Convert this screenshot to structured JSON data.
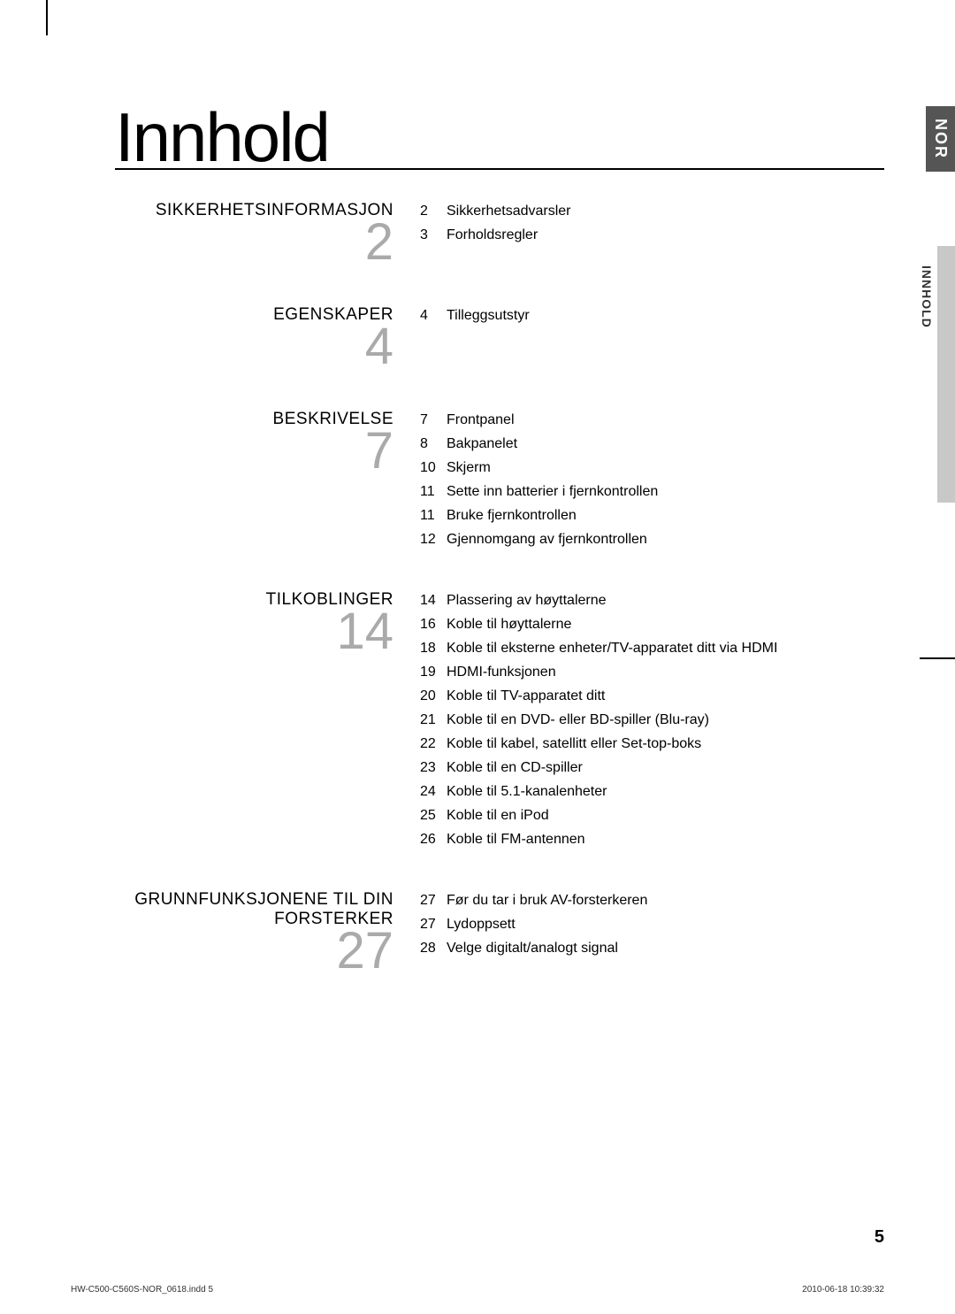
{
  "title": "Innhold",
  "lang_tab": "NOR",
  "section_tab": "INNHOLD",
  "page_number": "5",
  "footer_left": "HW-C500-C560S-NOR_0618.indd   5",
  "footer_right": "2010-06-18      10:39:32",
  "sections": [
    {
      "title": "SIKKERHETSINFORMASJON",
      "number": "2",
      "entries": [
        {
          "page": "2",
          "text": "Sikkerhetsadvarsler"
        },
        {
          "page": "3",
          "text": "Forholdsregler"
        }
      ]
    },
    {
      "title": "EGENSKAPER",
      "number": "4",
      "entries": [
        {
          "page": "4",
          "text": "Tilleggsutstyr"
        }
      ]
    },
    {
      "title": "BESKRIVELSE",
      "number": "7",
      "entries": [
        {
          "page": "7",
          "text": "Frontpanel"
        },
        {
          "page": "8",
          "text": "Bakpanelet"
        },
        {
          "page": "10",
          "text": "Skjerm"
        },
        {
          "page": "11",
          "text": "Sette inn batterier i fjernkontrollen"
        },
        {
          "page": "11",
          "text": "Bruke fjernkontrollen"
        },
        {
          "page": "12",
          "text": "Gjennomgang av fjernkontrollen"
        }
      ]
    },
    {
      "title": "TILKOBLINGER",
      "number": "14",
      "entries": [
        {
          "page": "14",
          "text": "Plassering av høyttalerne"
        },
        {
          "page": "16",
          "text": "Koble til høyttalerne"
        },
        {
          "page": "18",
          "text": "Koble til eksterne enheter/TV-apparatet ditt via HDMI"
        },
        {
          "page": "19",
          "text": "HDMI-funksjonen"
        },
        {
          "page": "20",
          "text": "Koble til TV-apparatet ditt"
        },
        {
          "page": "21",
          "text": "Koble til en DVD- eller BD-spiller (Blu-ray)"
        },
        {
          "page": "22",
          "text": "Koble til kabel, satellitt eller Set-top-boks"
        },
        {
          "page": "23",
          "text": "Koble til en CD-spiller"
        },
        {
          "page": "24",
          "text": "Koble til 5.1-kanalenheter"
        },
        {
          "page": "25",
          "text": "Koble til en iPod"
        },
        {
          "page": "26",
          "text": "Koble til FM-antennen"
        }
      ]
    },
    {
      "title": "GRUNNFUNKSJONENE TIL DIN FORSTERKER",
      "number": "27",
      "entries": [
        {
          "page": "27",
          "text": "Før du tar i bruk AV-forsterkeren"
        },
        {
          "page": "27",
          "text": "Lydoppsett"
        },
        {
          "page": "28",
          "text": "Velge digitalt/analogt signal"
        }
      ]
    }
  ]
}
